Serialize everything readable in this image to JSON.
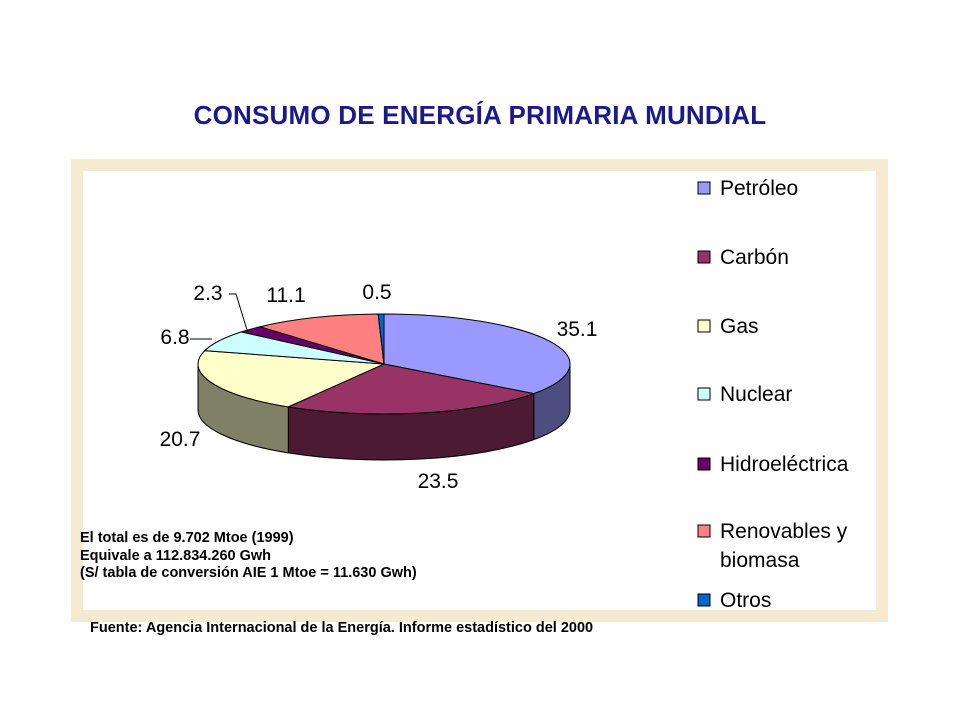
{
  "title": "CONSUMO DE ENERGÍA PRIMARIA MUNDIAL",
  "chart_data": {
    "type": "pie",
    "categories": [
      "Petróleo",
      "Carbón",
      "Gas",
      "Nuclear",
      "Hidroeléctrica",
      "Renovables y biomasa",
      "Otros"
    ],
    "legend_lines": [
      [
        "Petróleo"
      ],
      [
        "Carbón"
      ],
      [
        "Gas"
      ],
      [
        "Nuclear"
      ],
      [
        "Hidroeléctrica"
      ],
      [
        "Renovables y",
        "biomasa"
      ],
      [
        "Otros"
      ]
    ],
    "values": [
      35.1,
      23.5,
      20.7,
      6.8,
      2.3,
      11.1,
      0.5
    ],
    "value_labels": [
      "35.1",
      "23.5",
      "20.7",
      "6.8",
      "2.3",
      "11.1",
      "0.5"
    ],
    "colors": [
      "#9999ff",
      "#993366",
      "#ffffcc",
      "#ccffff",
      "#660066",
      "#ff8080",
      "#0066cc"
    ],
    "legend_placement": "right",
    "three_d": true
  },
  "notes": {
    "line1": "El total es de 9.702 Mtoe (1999)",
    "line2": "Equivale a 112.834.260 Gwh",
    "line3": "(S/ tabla de conversión AIE 1 Mtoe = 11.630 Gwh)"
  },
  "source": "Fuente: Agencia Internacional de la Energía. Informe estadístico del 2000"
}
